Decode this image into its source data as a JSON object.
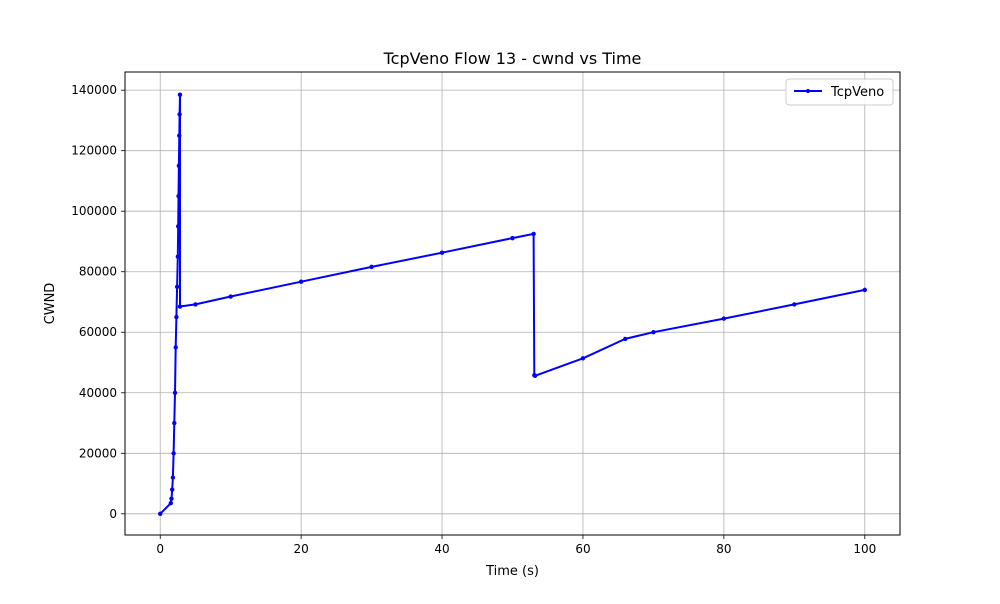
{
  "chart_data": {
    "type": "line",
    "title": "TcpVeno Flow 13 - cwnd vs Time",
    "xlabel": "Time (s)",
    "ylabel": "CWND",
    "xlim": [
      -5,
      105
    ],
    "ylim": [
      -7000,
      146000
    ],
    "xticks": [
      0,
      20,
      40,
      60,
      80,
      100
    ],
    "yticks": [
      0,
      20000,
      40000,
      60000,
      80000,
      100000,
      120000,
      140000
    ],
    "grid": true,
    "legend_position": "top-right",
    "series": [
      {
        "name": "TcpVeno",
        "color": "#0000ff",
        "x": [
          0,
          1.5,
          1.6,
          1.7,
          1.8,
          1.9,
          2.0,
          2.1,
          2.2,
          2.3,
          2.4,
          2.5,
          2.55,
          2.6,
          2.65,
          2.7,
          2.75,
          2.8,
          2.8,
          5,
          10,
          20,
          30,
          40,
          50,
          53,
          53.1,
          53.2,
          60,
          66,
          70,
          80,
          90,
          100
        ],
        "y": [
          0,
          3500,
          5000,
          8000,
          12000,
          20000,
          30000,
          40000,
          55000,
          65000,
          75000,
          85000,
          95000,
          105000,
          115000,
          125000,
          132000,
          138500,
          68500,
          69200,
          71800,
          76700,
          81600,
          86300,
          91100,
          92500,
          45800,
          45600,
          51400,
          57800,
          60000,
          64500,
          69200,
          74000
        ]
      }
    ]
  }
}
